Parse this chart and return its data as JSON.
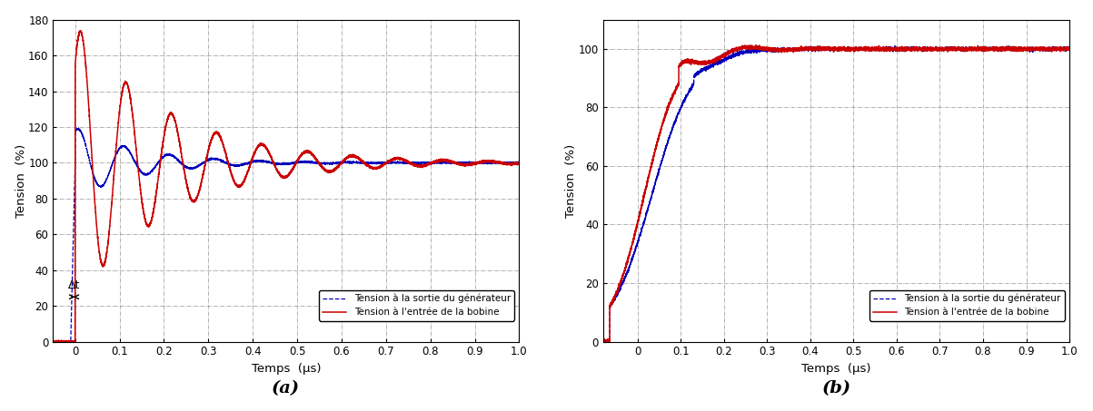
{
  "title_a": "(a)",
  "title_b": "(b)",
  "xlabel": "Temps  (μs)",
  "ylabel": "Tension  (%)",
  "xlim_a": [
    -0.05,
    1.0
  ],
  "xlim_b": [
    -0.08,
    1.0
  ],
  "ylim_a": [
    0,
    180
  ],
  "ylim_b": [
    0,
    110
  ],
  "yticks_a": [
    0,
    20,
    40,
    60,
    80,
    100,
    120,
    140,
    160,
    180
  ],
  "yticks_b": [
    0,
    20,
    40,
    60,
    80,
    100
  ],
  "xticks_a": [
    0,
    0.1,
    0.2,
    0.3,
    0.4,
    0.5,
    0.6,
    0.7,
    0.8,
    0.9,
    1.0
  ],
  "xticks_b": [
    0,
    0.1,
    0.2,
    0.3,
    0.4,
    0.5,
    0.6,
    0.7,
    0.8,
    0.9,
    1.0
  ],
  "legend_blue": "Tension à la sortie du générateur",
  "legend_red": "Tension à l'entrée de la bobine",
  "color_blue": "#0000bb",
  "color_red": "#cc0000",
  "annotation_a": "Δt",
  "grid_color": "#777777",
  "bg_color": "#ffffff"
}
